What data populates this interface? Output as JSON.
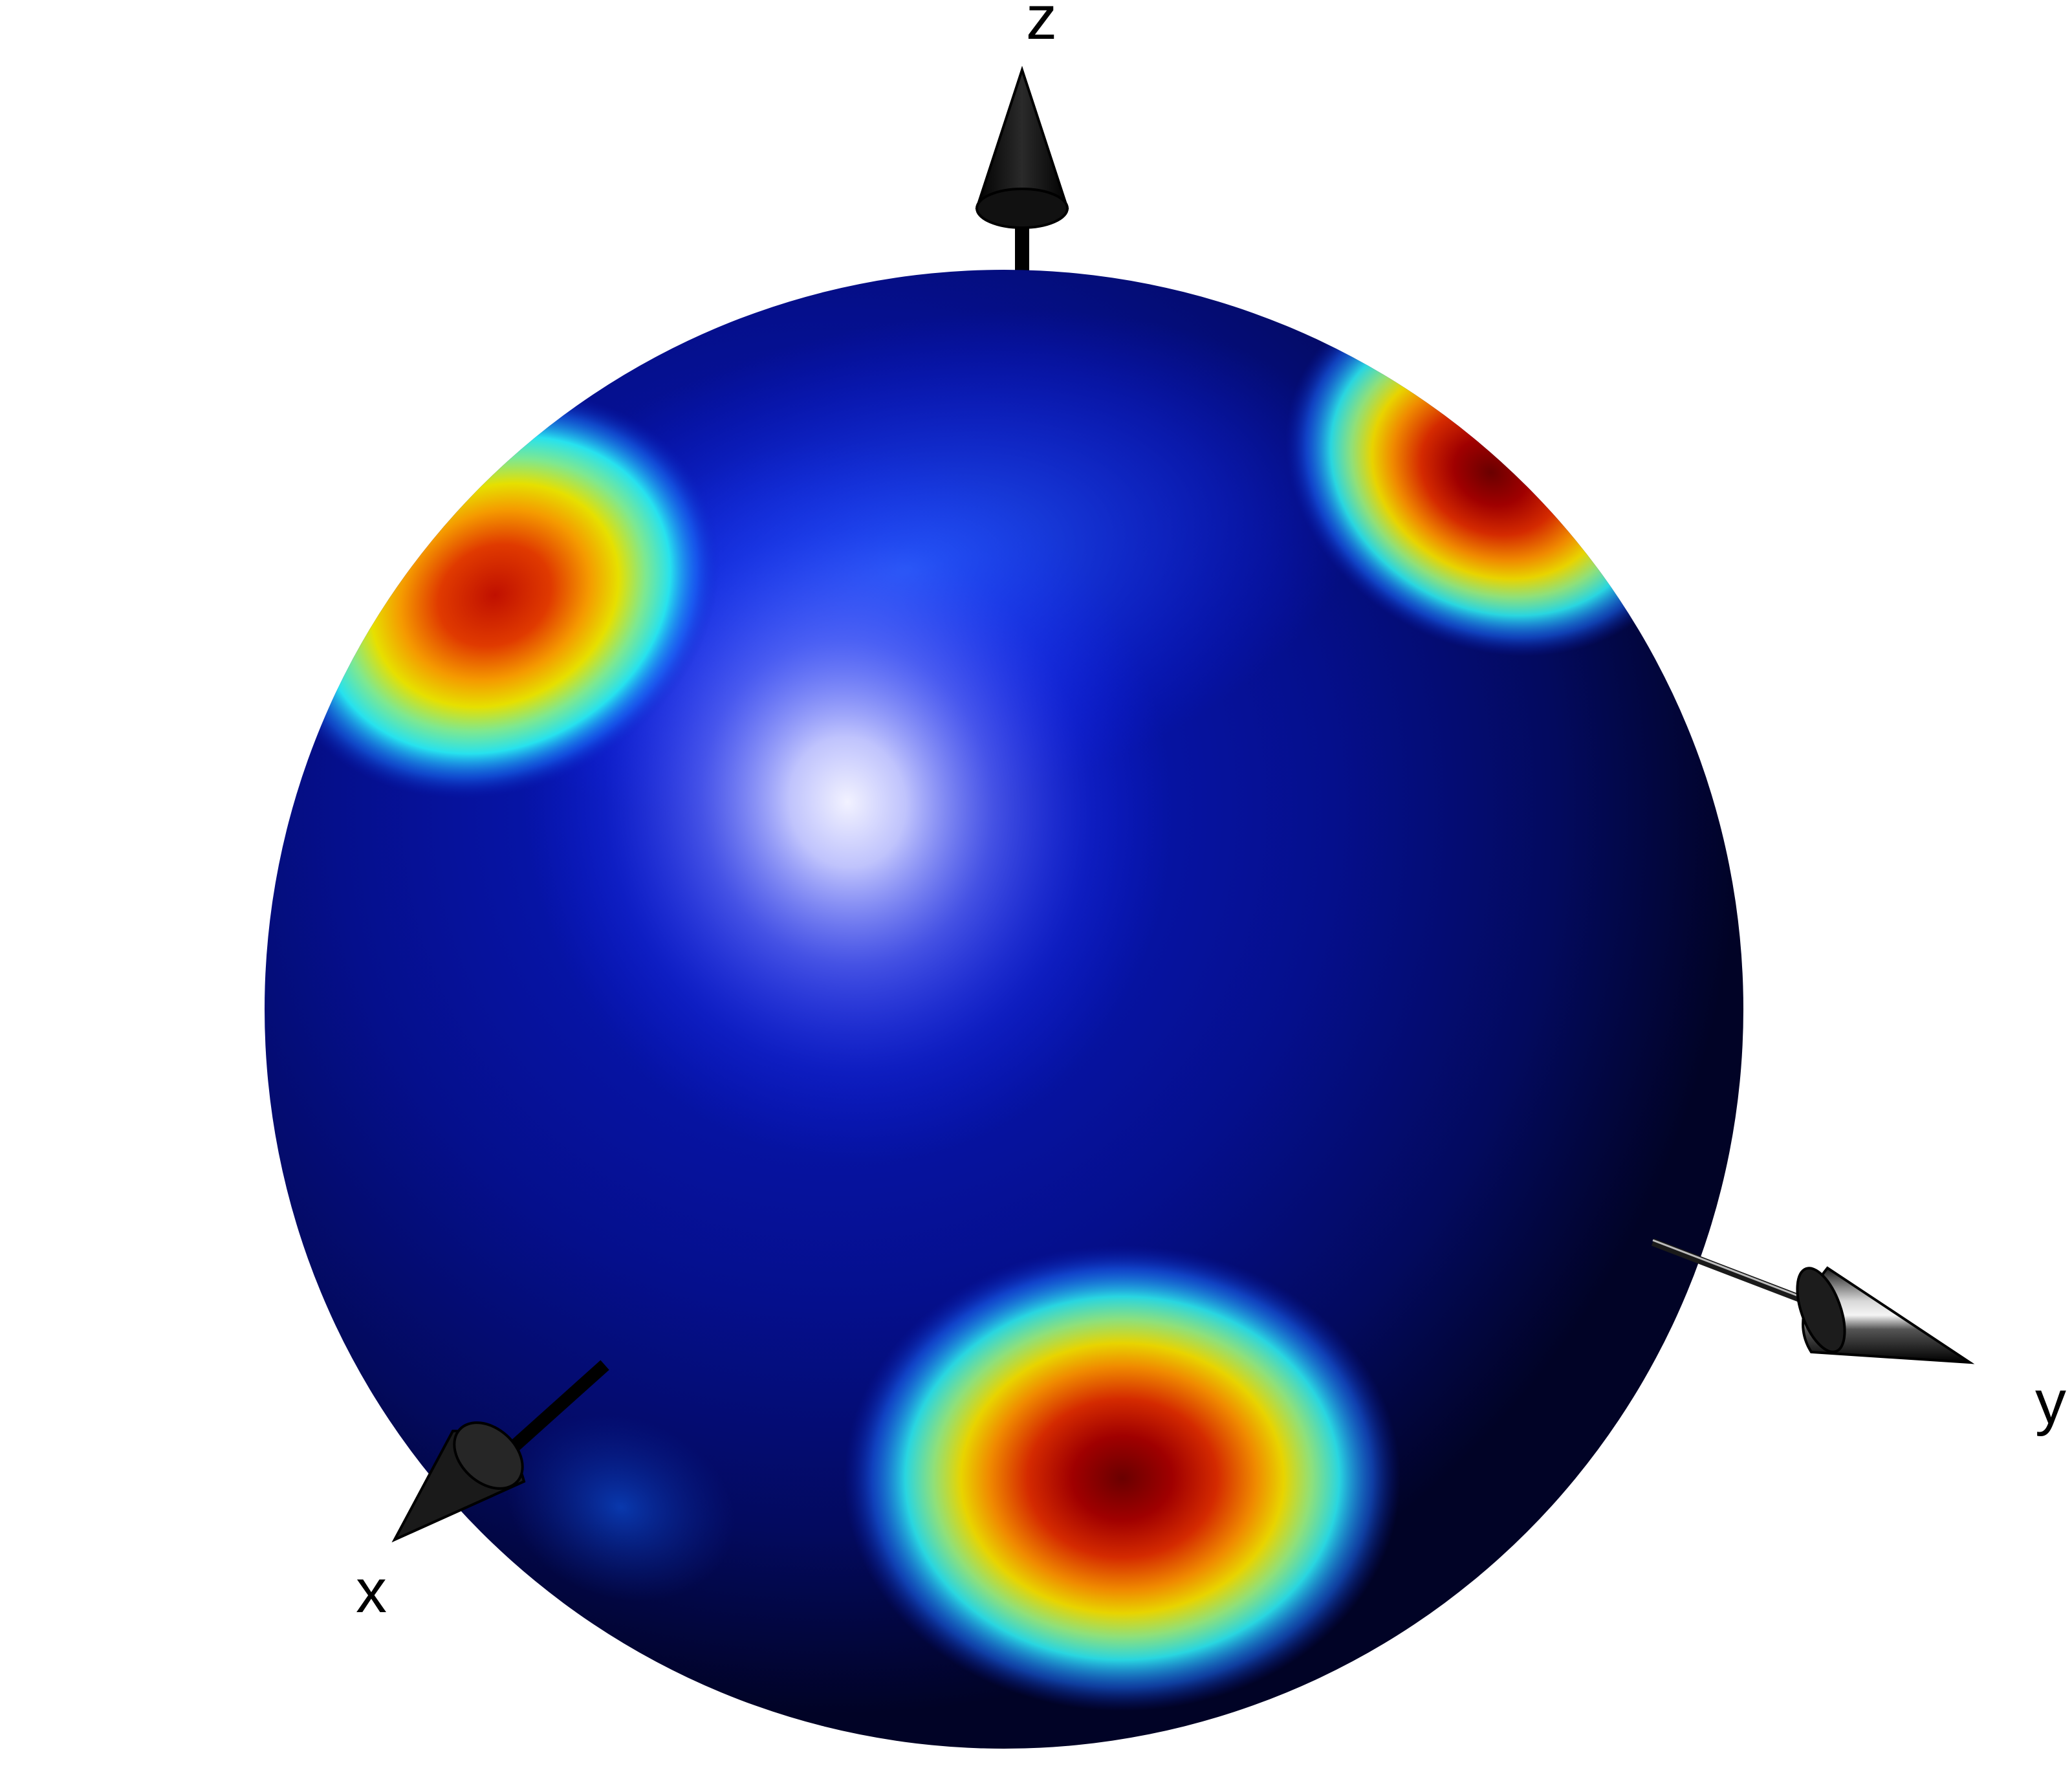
{
  "axes": {
    "x_label": "x",
    "y_label": "y",
    "z_label": "z"
  },
  "sphere": {
    "base_color": "#05108f",
    "shadow_color": "#020325",
    "highlight_color": "#e8e8ff",
    "hotspot_colors": [
      "#7a0000",
      "#d42a00",
      "#f6c400",
      "#36e0d8",
      "#1a6cff"
    ]
  },
  "arrow_color": "#111111"
}
